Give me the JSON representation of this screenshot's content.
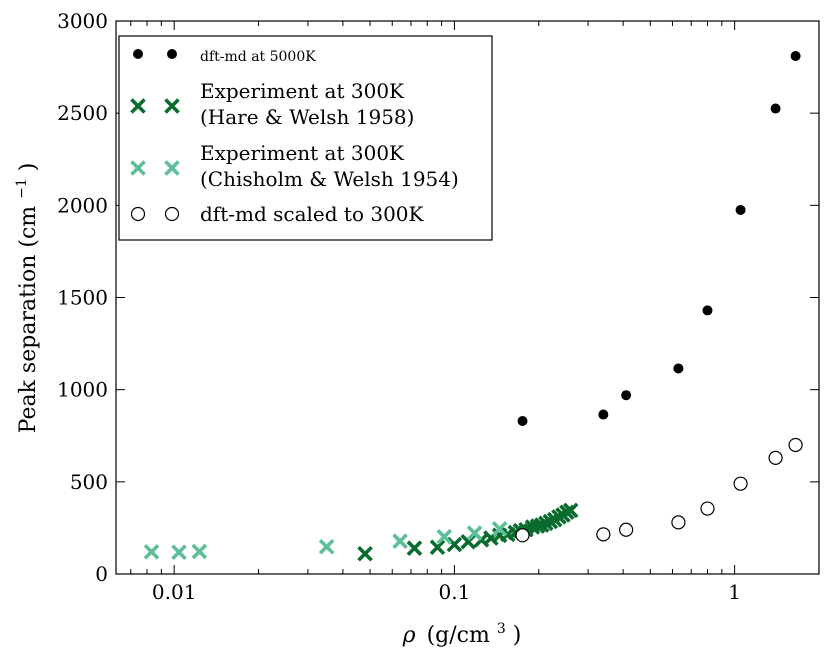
{
  "chart_data": {
    "type": "scatter",
    "xscale": "log",
    "xlim": [
      0.0062,
      2.0
    ],
    "ylim": [
      0,
      3000
    ],
    "xticks": [
      {
        "value": 0.01,
        "label": "0.01"
      },
      {
        "value": 0.1,
        "label": "0.1"
      },
      {
        "value": 1,
        "label": "1"
      }
    ],
    "yticks": [
      {
        "value": 0,
        "label": "0"
      },
      {
        "value": 500,
        "label": "500"
      },
      {
        "value": 1000,
        "label": "1000"
      },
      {
        "value": 1500,
        "label": "1500"
      },
      {
        "value": 2000,
        "label": "2000"
      },
      {
        "value": 2500,
        "label": "2500"
      },
      {
        "value": 3000,
        "label": "3000"
      }
    ],
    "xlabel_symbol": "ρ",
    "xlabel_units": "(g/cm",
    "xlabel_sup": "3",
    "xlabel_close": ")",
    "ylabel_main": "Peak separation (cm",
    "ylabel_sup": "−1",
    "ylabel_close": ")",
    "legend_position": "top-left",
    "series": [
      {
        "name": "DFT-MD at 5000K",
        "legend_lines": [
          "dft-md at 5000K"
        ],
        "marker": "filled-circle",
        "color": "#000000",
        "x": [
          0.175,
          0.34,
          0.41,
          0.63,
          0.8,
          1.05,
          1.4,
          1.65
        ],
        "y": [
          830,
          865,
          970,
          1115,
          1430,
          1975,
          2525,
          2810
        ]
      },
      {
        "name": "Experiment at 300K (Hare & Welsh 1958)",
        "legend_lines": [
          "Experiment at 300K",
          "(Hare & Welsh 1958)"
        ],
        "marker": "x",
        "color": "#0a6b2e",
        "x": [
          0.048,
          0.072,
          0.087,
          0.1,
          0.112,
          0.125,
          0.135,
          0.145,
          0.155,
          0.165,
          0.172,
          0.18,
          0.19,
          0.198,
          0.205,
          0.212,
          0.22,
          0.228,
          0.236,
          0.244,
          0.252,
          0.26
        ],
        "y": [
          110,
          140,
          145,
          160,
          175,
          185,
          195,
          210,
          215,
          225,
          235,
          240,
          255,
          260,
          265,
          275,
          285,
          295,
          310,
          320,
          335,
          345
        ]
      },
      {
        "name": "Experiment at 300K (Chisholm & Welsh 1954)",
        "legend_lines": [
          "Experiment at 300K",
          "(Chisholm & Welsh 1954)"
        ],
        "marker": "x",
        "color": "#5cbf97",
        "x": [
          0.0083,
          0.0104,
          0.0123,
          0.035,
          0.064,
          0.092,
          0.118,
          0.145
        ],
        "y": [
          120,
          118,
          122,
          148,
          178,
          202,
          222,
          245
        ]
      },
      {
        "name": "DFT-MD scaled to 300K",
        "legend_lines": [
          "dft-md scaled to 300K"
        ],
        "marker": "open-circle",
        "color": "#000000",
        "x": [
          0.175,
          0.34,
          0.41,
          0.63,
          0.8,
          1.05,
          1.4,
          1.65
        ],
        "y": [
          210,
          215,
          240,
          280,
          355,
          490,
          630,
          700
        ]
      }
    ]
  }
}
